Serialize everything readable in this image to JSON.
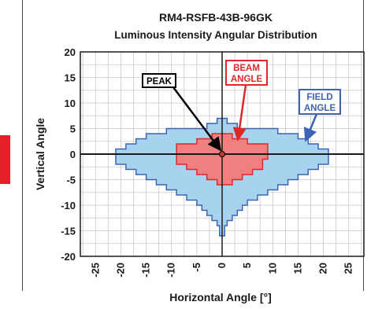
{
  "chart_data": {
    "type": "area",
    "title": "RM4-RSFB-43B-96GK",
    "subtitle": "Luminous Intensity Angular Distribution",
    "xlabel": "Horizontal Angle [°]",
    "ylabel": "Vertical Angle",
    "xlim": [
      -28,
      28
    ],
    "ylim": [
      -20,
      20
    ],
    "x_ticks": [
      "-25",
      "-20",
      "-15",
      "-10",
      "-5",
      "0",
      "5",
      "10",
      "15",
      "20",
      "25"
    ],
    "y_ticks": [
      "20",
      "15",
      "10",
      "5",
      "0",
      "-5",
      "-10",
      "-15",
      "-20"
    ],
    "grid": true,
    "series": [
      {
        "name": "FIELD ANGLE",
        "color": "#a8d3ee",
        "edge_color": "#3f63b4",
        "outline": [
          [
            -21,
            1
          ],
          [
            -19,
            1
          ],
          [
            -19,
            2
          ],
          [
            -17,
            2
          ],
          [
            -17,
            3
          ],
          [
            -15,
            3
          ],
          [
            -15,
            4
          ],
          [
            -11,
            4
          ],
          [
            -11,
            5
          ],
          [
            -3,
            5
          ],
          [
            -3,
            6
          ],
          [
            -1,
            6
          ],
          [
            -1,
            7
          ],
          [
            1,
            7
          ],
          [
            1,
            6
          ],
          [
            3,
            6
          ],
          [
            3,
            5
          ],
          [
            11,
            5
          ],
          [
            11,
            4
          ],
          [
            15,
            4
          ],
          [
            15,
            3
          ],
          [
            17,
            3
          ],
          [
            17,
            2
          ],
          [
            19,
            2
          ],
          [
            19,
            1
          ],
          [
            21,
            1
          ],
          [
            21,
            -2
          ],
          [
            19,
            -2
          ],
          [
            19,
            -3
          ],
          [
            17,
            -3
          ],
          [
            17,
            -4
          ],
          [
            15,
            -4
          ],
          [
            15,
            -5
          ],
          [
            13,
            -5
          ],
          [
            13,
            -6
          ],
          [
            11,
            -6
          ],
          [
            11,
            -7
          ],
          [
            9,
            -7
          ],
          [
            9,
            -8
          ],
          [
            7,
            -8
          ],
          [
            7,
            -9
          ],
          [
            5,
            -9
          ],
          [
            5,
            -10
          ],
          [
            4,
            -10
          ],
          [
            4,
            -11
          ],
          [
            3,
            -11
          ],
          [
            3,
            -12
          ],
          [
            2,
            -12
          ],
          [
            2,
            -13
          ],
          [
            1,
            -13
          ],
          [
            1,
            -14
          ],
          [
            0.5,
            -14
          ],
          [
            0.5,
            -16
          ],
          [
            -0.5,
            -16
          ],
          [
            -0.5,
            -14
          ],
          [
            -1,
            -14
          ],
          [
            -1,
            -13
          ],
          [
            -2,
            -13
          ],
          [
            -2,
            -12
          ],
          [
            -3,
            -12
          ],
          [
            -3,
            -11
          ],
          [
            -4,
            -11
          ],
          [
            -4,
            -10
          ],
          [
            -5,
            -10
          ],
          [
            -5,
            -9
          ],
          [
            -7,
            -9
          ],
          [
            -7,
            -8
          ],
          [
            -9,
            -8
          ],
          [
            -9,
            -7
          ],
          [
            -11,
            -7
          ],
          [
            -11,
            -6
          ],
          [
            -13,
            -6
          ],
          [
            -13,
            -5
          ],
          [
            -15,
            -5
          ],
          [
            -15,
            -4
          ],
          [
            -17,
            -4
          ],
          [
            -17,
            -3
          ],
          [
            -19,
            -3
          ],
          [
            -19,
            -2
          ],
          [
            -21,
            -2
          ]
        ]
      },
      {
        "name": "BEAM ANGLE",
        "color": "#f07f7f",
        "edge_color": "#e02828",
        "outline": [
          [
            -9,
            0
          ],
          [
            -9,
            2
          ],
          [
            -5,
            2
          ],
          [
            -5,
            3
          ],
          [
            -2,
            3
          ],
          [
            -2,
            4
          ],
          [
            2,
            4
          ],
          [
            2,
            3
          ],
          [
            5,
            3
          ],
          [
            5,
            2
          ],
          [
            9,
            2
          ],
          [
            9,
            -1
          ],
          [
            8,
            -1
          ],
          [
            8,
            -3
          ],
          [
            6,
            -3
          ],
          [
            6,
            -4
          ],
          [
            4,
            -4
          ],
          [
            4,
            -5
          ],
          [
            2,
            -5
          ],
          [
            2,
            -6
          ],
          [
            -1,
            -6
          ],
          [
            -1,
            -5
          ],
          [
            -3,
            -5
          ],
          [
            -3,
            -4
          ],
          [
            -5,
            -4
          ],
          [
            -5,
            -3
          ],
          [
            -7,
            -3
          ],
          [
            -7,
            -2
          ],
          [
            -9,
            -2
          ]
        ]
      }
    ],
    "annotations": [
      {
        "text": "PEAK",
        "color": "#000000",
        "point": [
          0,
          0
        ]
      },
      {
        "text": "BEAM",
        "text2": "ANGLE",
        "color": "#e02828"
      },
      {
        "text": "FIELD",
        "text2": "ANGLE",
        "color": "#3f63b4"
      }
    ]
  }
}
